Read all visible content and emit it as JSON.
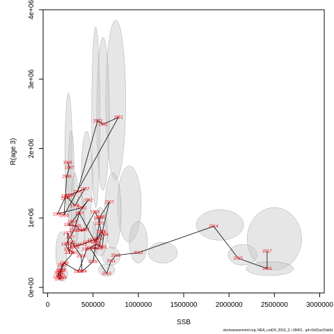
{
  "chart_data": {
    "type": "scatter",
    "title": "",
    "xlabel": "SSB",
    "ylabel": "R(age 3)",
    "xlim": [
      -50000,
      3050000
    ],
    "ylim": [
      -80000,
      4000000
    ],
    "x_ticks": [
      0,
      500000,
      1000000,
      1500000,
      2000000,
      2500000,
      3000000
    ],
    "x_tick_labels": [
      "0",
      "500000",
      "1000000",
      "1500000",
      "2000000",
      "2500000",
      "3000000"
    ],
    "y_ticks": [
      0,
      1000000,
      2000000,
      3000000,
      4000000
    ],
    "y_tick_labels": [
      "0e+00",
      "1e+06",
      "2e+06",
      "3e+06",
      "4e+06"
    ],
    "grid": false,
    "footer": "stockassessment.org, NEA_cod24_2016_2, r18401 , git:c9c81ac53a0d",
    "series": [
      {
        "points": [
          {
            "year": "1946",
            "x": 220000,
            "y": 1800000
          },
          {
            "year": "1947",
            "x": 240000,
            "y": 1730000
          },
          {
            "year": "1948",
            "x": 210000,
            "y": 1600000
          },
          {
            "year": "1949",
            "x": 195000,
            "y": 1290000
          },
          {
            "year": "1950",
            "x": 180000,
            "y": 1040000
          },
          {
            "year": "1951",
            "x": 780000,
            "y": 2450000
          },
          {
            "year": "1952",
            "x": 610000,
            "y": 2350000
          },
          {
            "year": "1953",
            "x": 550000,
            "y": 2400000
          },
          {
            "year": "1955",
            "x": 330000,
            "y": 1380000
          },
          {
            "year": "1956",
            "x": 250000,
            "y": 1330000
          },
          {
            "year": "1957",
            "x": 410000,
            "y": 1420000
          },
          {
            "year": "1958",
            "x": 300000,
            "y": 1180000
          },
          {
            "year": "1959",
            "x": 200000,
            "y": 1320000
          },
          {
            "year": "1960",
            "x": 110000,
            "y": 1060000
          },
          {
            "year": "1961",
            "x": 380000,
            "y": 1150000
          },
          {
            "year": "1962",
            "x": 450000,
            "y": 1260000
          },
          {
            "year": "1963",
            "x": 270000,
            "y": 950000
          },
          {
            "year": "1964",
            "x": 230000,
            "y": 900000
          },
          {
            "year": "1965",
            "x": 320000,
            "y": 880000
          },
          {
            "year": "1966",
            "x": 360000,
            "y": 820000
          },
          {
            "year": "1967",
            "x": 410000,
            "y": 830000
          },
          {
            "year": "1968",
            "x": 520000,
            "y": 1090000
          },
          {
            "year": "1969",
            "x": 560000,
            "y": 1000000
          },
          {
            "year": "1970",
            "x": 570000,
            "y": 920000
          },
          {
            "year": "1971",
            "x": 590000,
            "y": 800000
          },
          {
            "year": "1972",
            "x": 560000,
            "y": 700000
          },
          {
            "year": "1973",
            "x": 490000,
            "y": 680000
          },
          {
            "year": "1974",
            "x": 440000,
            "y": 650000
          },
          {
            "year": "1975",
            "x": 380000,
            "y": 620000
          },
          {
            "year": "1976",
            "x": 300000,
            "y": 600000
          },
          {
            "year": "1977",
            "x": 250000,
            "y": 720000
          },
          {
            "year": "1978",
            "x": 220000,
            "y": 780000
          },
          {
            "year": "1979",
            "x": 230000,
            "y": 550000
          },
          {
            "year": "1980",
            "x": 280000,
            "y": 500000
          },
          {
            "year": "1981",
            "x": 160000,
            "y": 320000
          },
          {
            "year": "1982",
            "x": 140000,
            "y": 240000
          },
          {
            "year": "1983",
            "x": 110000,
            "y": 150000
          },
          {
            "year": "1984",
            "x": 120000,
            "y": 210000
          },
          {
            "year": "1985",
            "x": 140000,
            "y": 180000
          },
          {
            "year": "1986",
            "x": 160000,
            "y": 140000
          },
          {
            "year": "1987",
            "x": 130000,
            "y": 120000
          },
          {
            "year": "1988",
            "x": 150000,
            "y": 250000
          },
          {
            "year": "1989",
            "x": 180000,
            "y": 350000
          },
          {
            "year": "1990",
            "x": 340000,
            "y": 230000
          },
          {
            "year": "1991",
            "x": 430000,
            "y": 550000
          },
          {
            "year": "1992",
            "x": 540000,
            "y": 620000
          },
          {
            "year": "1993",
            "x": 600000,
            "y": 580000
          },
          {
            "year": "1994",
            "x": 620000,
            "y": 760000
          },
          {
            "year": "1995",
            "x": 590000,
            "y": 800000
          },
          {
            "year": "1996",
            "x": 520000,
            "y": 660000
          },
          {
            "year": "1997",
            "x": 350000,
            "y": 1070000
          },
          {
            "year": "1998",
            "x": 290000,
            "y": 820000
          },
          {
            "year": "1999",
            "x": 200000,
            "y": 620000
          },
          {
            "year": "2000",
            "x": 240000,
            "y": 500000
          },
          {
            "year": "2001",
            "x": 260000,
            "y": 650000
          },
          {
            "year": "2002",
            "x": 300000,
            "y": 580000
          },
          {
            "year": "2003",
            "x": 370000,
            "y": 450000
          },
          {
            "year": "2004",
            "x": 380000,
            "y": 230000
          },
          {
            "year": "2005",
            "x": 500000,
            "y": 370000
          },
          {
            "year": "2006",
            "x": 580000,
            "y": 1020000
          },
          {
            "year": "2007",
            "x": 680000,
            "y": 1230000
          },
          {
            "year": "2008",
            "x": 560000,
            "y": 560000
          },
          {
            "year": "2009",
            "x": 470000,
            "y": 570000
          },
          {
            "year": "2010",
            "x": 650000,
            "y": 200000
          },
          {
            "year": "2011",
            "x": 700000,
            "y": 380000
          },
          {
            "year": "2012",
            "x": 750000,
            "y": 460000
          },
          {
            "year": "2013",
            "x": 1000000,
            "y": 500000
          },
          {
            "year": "2014",
            "x": 1830000,
            "y": 880000
          },
          {
            "year": "2015",
            "x": 2100000,
            "y": 420000
          },
          {
            "year": "2016",
            "x": 2420000,
            "y": 270000
          },
          {
            "year": "2017",
            "x": 2420000,
            "y": 520000
          }
        ]
      }
    ],
    "ellipses": [
      {
        "cx": 750000,
        "cy": 2700000,
        "rx": 110000,
        "ry": 1150000
      },
      {
        "cx": 610000,
        "cy": 2500000,
        "rx": 70000,
        "ry": 1100000
      },
      {
        "cx": 530000,
        "cy": 2450000,
        "rx": 45000,
        "ry": 1300000
      },
      {
        "cx": 900000,
        "cy": 1200000,
        "rx": 130000,
        "ry": 550000
      },
      {
        "cx": 720000,
        "cy": 1100000,
        "rx": 90000,
        "ry": 550000
      },
      {
        "cx": 430000,
        "cy": 1550000,
        "rx": 60000,
        "ry": 700000
      },
      {
        "cx": 230000,
        "cy": 1900000,
        "rx": 40000,
        "ry": 900000
      },
      {
        "cx": 260000,
        "cy": 1500000,
        "rx": 35000,
        "ry": 750000
      },
      {
        "cx": 300000,
        "cy": 1100000,
        "rx": 40000,
        "ry": 550000
      },
      {
        "cx": 360000,
        "cy": 900000,
        "rx": 50000,
        "ry": 450000
      },
      {
        "cx": 1000000,
        "cy": 650000,
        "rx": 100000,
        "ry": 300000
      },
      {
        "cx": 1270000,
        "cy": 500000,
        "rx": 160000,
        "ry": 150000
      },
      {
        "cx": 1900000,
        "cy": 900000,
        "rx": 260000,
        "ry": 220000
      },
      {
        "cx": 2150000,
        "cy": 470000,
        "rx": 160000,
        "ry": 150000
      },
      {
        "cx": 2500000,
        "cy": 700000,
        "rx": 300000,
        "ry": 450000
      },
      {
        "cx": 2450000,
        "cy": 270000,
        "rx": 260000,
        "ry": 100000
      },
      {
        "cx": 650000,
        "cy": 250000,
        "rx": 90000,
        "ry": 90000
      },
      {
        "cx": 700000,
        "cy": 450000,
        "rx": 100000,
        "ry": 130000
      },
      {
        "cx": 160000,
        "cy": 200000,
        "rx": 60000,
        "ry": 110000
      },
      {
        "cx": 150000,
        "cy": 500000,
        "rx": 60000,
        "ry": 300000
      },
      {
        "cx": 580000,
        "cy": 800000,
        "rx": 80000,
        "ry": 350000
      },
      {
        "cx": 480000,
        "cy": 650000,
        "rx": 70000,
        "ry": 300000
      }
    ]
  }
}
